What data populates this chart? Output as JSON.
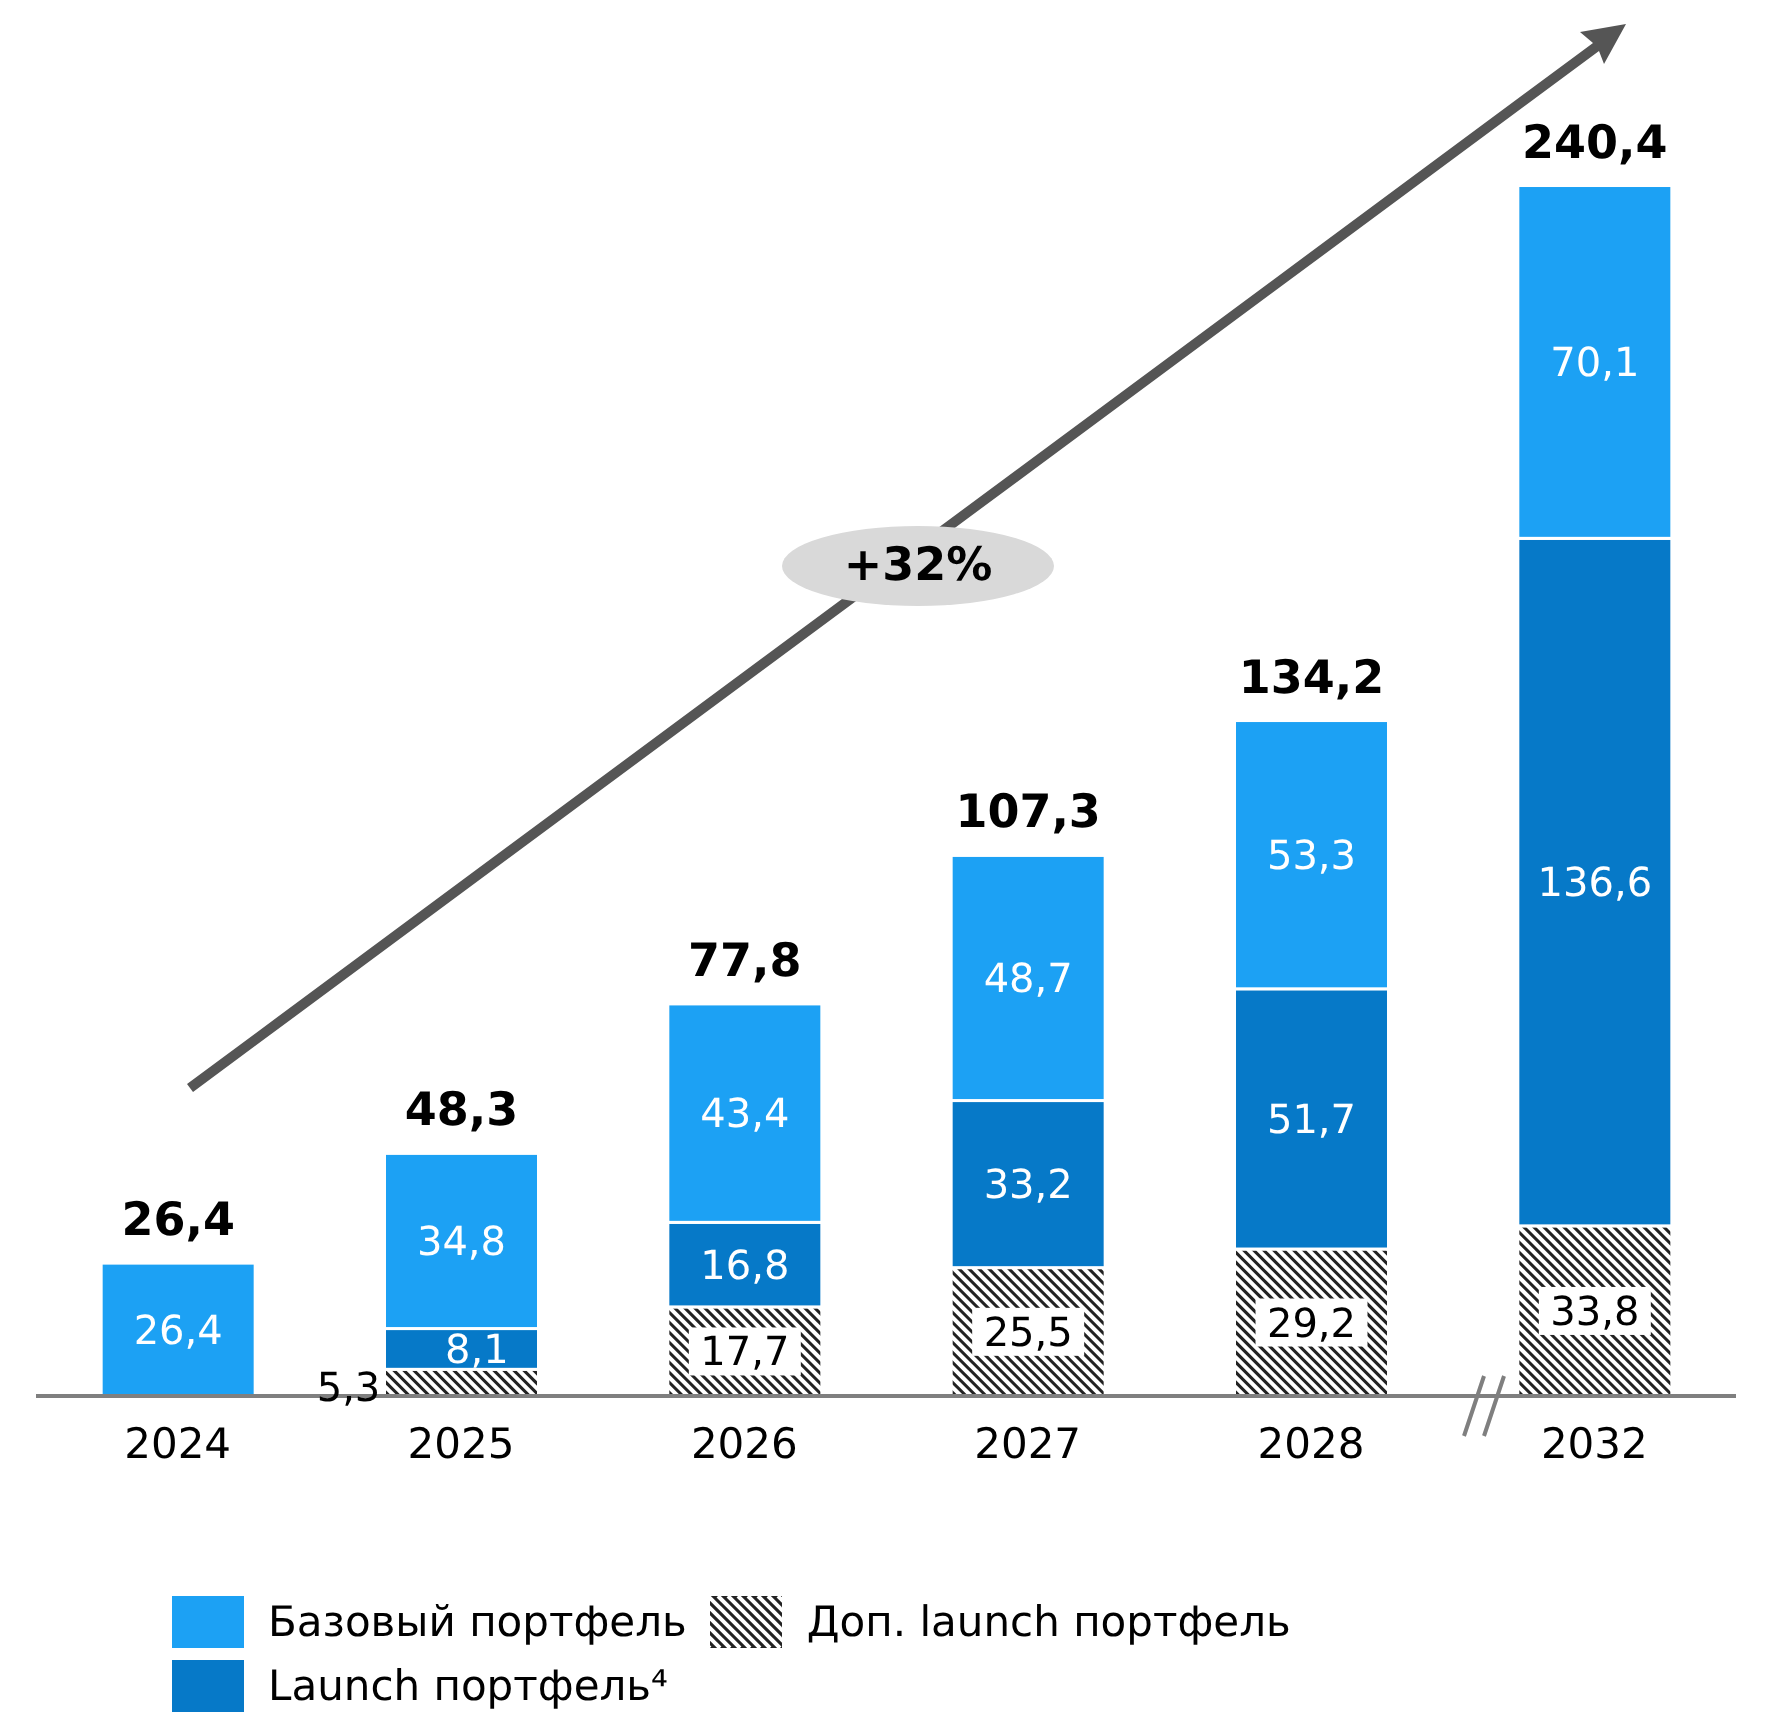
{
  "chart_data": {
    "type": "bar",
    "stacked": true,
    "legend": "bottom",
    "categories": [
      "2024",
      "2025",
      "2026",
      "2027",
      "2028",
      "2032"
    ],
    "series": [
      {
        "name": "Доп. launch портфель",
        "color": "#222222",
        "values": [
          null,
          5.3,
          17.7,
          25.5,
          29.2,
          33.8
        ],
        "value_labels": [
          null,
          "5,3",
          "17,7",
          "25,5",
          "29,2",
          "33,8"
        ]
      },
      {
        "name": "Launch портфель⁴",
        "color": "#0679c8",
        "values": [
          null,
          8.1,
          16.8,
          33.2,
          51.7,
          136.6
        ],
        "value_labels": [
          null,
          "8,1",
          "16,8",
          "33,2",
          "51,7",
          "136,6"
        ]
      },
      {
        "name": "Базовый портфель",
        "color": "#1ca1f4",
        "values": [
          26.4,
          34.8,
          43.4,
          48.7,
          53.3,
          70.1
        ],
        "value_labels": [
          "26,4",
          "34,8",
          "43,4",
          "48,7",
          "53,3",
          "70,1"
        ]
      }
    ],
    "totals": [
      "26,4",
      "48,3",
      "77,8",
      "107,3",
      "134,2",
      "240,4"
    ],
    "annotations": [
      "+32%"
    ]
  }
}
